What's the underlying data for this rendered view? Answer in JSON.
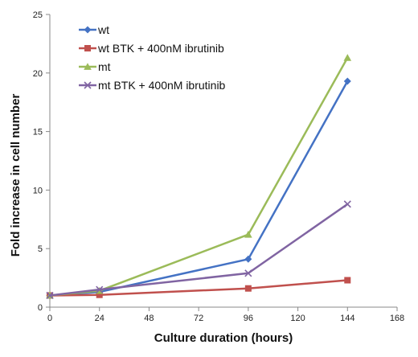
{
  "chart_data": {
    "type": "line",
    "title": "",
    "xlabel": "Culture duration (hours)",
    "ylabel": "Fold increase in cell number",
    "xlim": [
      0,
      168
    ],
    "ylim": [
      0,
      25
    ],
    "xticks": [
      0,
      24,
      48,
      72,
      96,
      120,
      144,
      168
    ],
    "yticks": [
      0,
      5,
      10,
      15,
      20,
      25
    ],
    "grid": false,
    "legend_position": "top-left",
    "series": [
      {
        "name": "wt",
        "color": "#4472C4",
        "marker": "diamond",
        "x": [
          0,
          24,
          96,
          144
        ],
        "y": [
          1.0,
          1.3,
          4.1,
          19.3
        ]
      },
      {
        "name": "wt BTK + 400nM ibrutinib",
        "color": "#C0504D",
        "marker": "square",
        "x": [
          0,
          24,
          96,
          144
        ],
        "y": [
          1.0,
          1.05,
          1.6,
          2.3
        ]
      },
      {
        "name": "mt",
        "color": "#9BBB59",
        "marker": "triangle",
        "x": [
          0,
          24,
          96,
          144
        ],
        "y": [
          1.0,
          1.4,
          6.2,
          21.3
        ]
      },
      {
        "name": "mt  BTK +  400nM ibrutinib",
        "color": "#8064A2",
        "marker": "x",
        "x": [
          0,
          24,
          96,
          144
        ],
        "y": [
          1.0,
          1.5,
          2.9,
          8.8
        ]
      }
    ]
  }
}
